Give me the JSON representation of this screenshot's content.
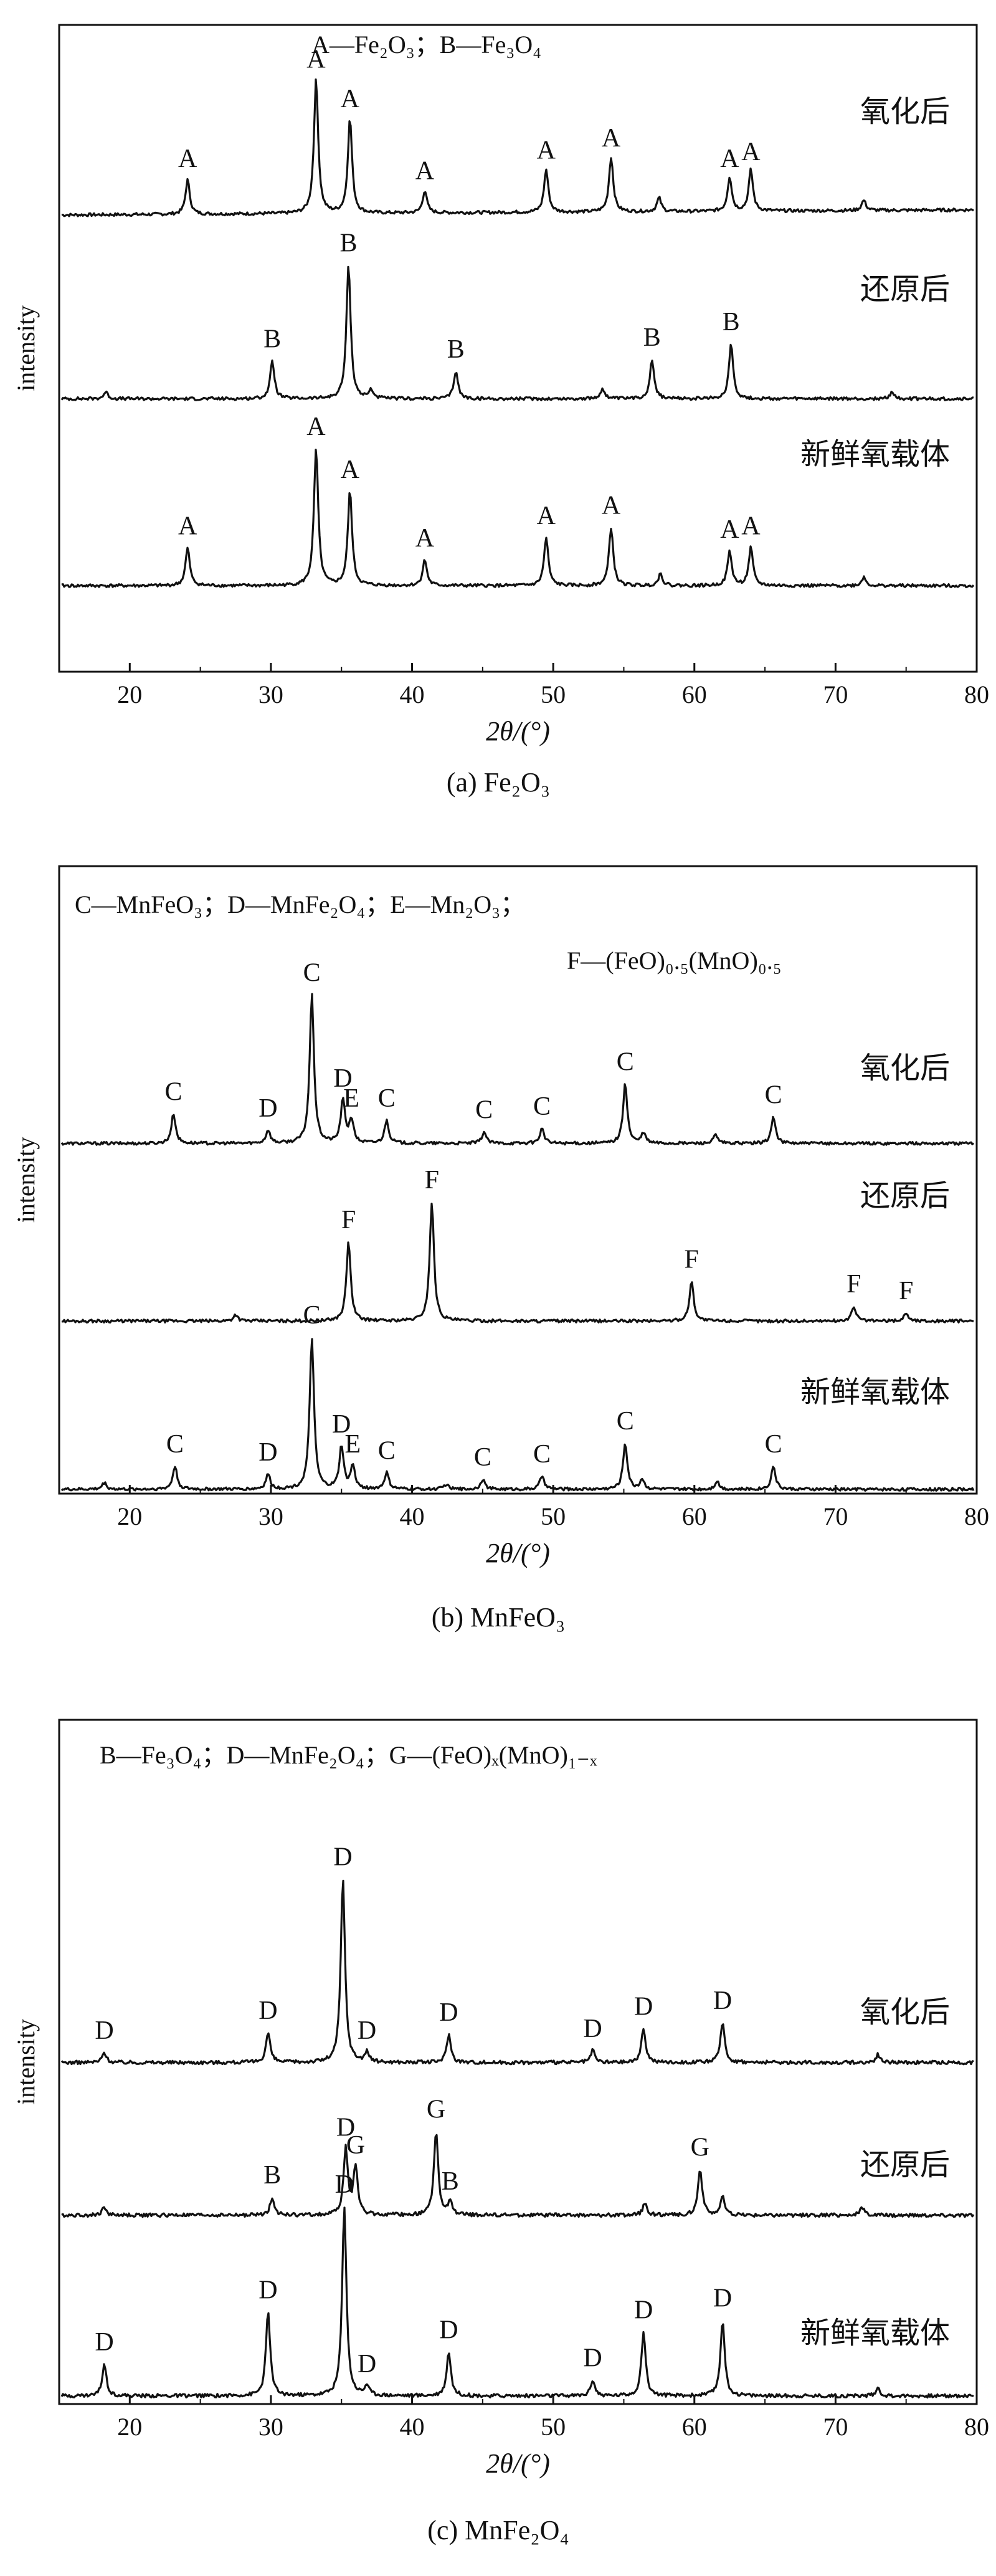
{
  "chart_data": [
    {
      "type": "line",
      "caption": "(a) Fe₂O₃",
      "legend": "A—Fe₂O₃；B—Fe₃O₄",
      "xlabel": "2θ/(°)",
      "ylabel": "intensity",
      "xlim": [
        15,
        80
      ],
      "xticks": [
        20,
        30,
        40,
        50,
        60,
        70,
        80
      ],
      "series": [
        {
          "name": "氧化后",
          "peaks": [
            {
              "x": 24.1,
              "h": 0.2,
              "label": "A"
            },
            {
              "x": 33.2,
              "h": 0.78,
              "label": "A"
            },
            {
              "x": 35.6,
              "h": 0.55,
              "label": "A"
            },
            {
              "x": 40.9,
              "h": 0.13,
              "label": "A"
            },
            {
              "x": 49.5,
              "h": 0.25,
              "label": "A"
            },
            {
              "x": 54.1,
              "h": 0.32,
              "label": "A"
            },
            {
              "x": 57.5,
              "h": 0.08,
              "label": ""
            },
            {
              "x": 62.5,
              "h": 0.2,
              "label": "A"
            },
            {
              "x": 64.0,
              "h": 0.24,
              "label": "A"
            },
            {
              "x": 72.0,
              "h": 0.06,
              "label": ""
            }
          ]
        },
        {
          "name": "还原后",
          "peaks": [
            {
              "x": 18.3,
              "h": 0.04,
              "label": ""
            },
            {
              "x": 30.1,
              "h": 0.22,
              "label": "B"
            },
            {
              "x": 35.5,
              "h": 0.78,
              "label": "B"
            },
            {
              "x": 37.1,
              "h": 0.05,
              "label": ""
            },
            {
              "x": 43.1,
              "h": 0.16,
              "label": "B"
            },
            {
              "x": 53.5,
              "h": 0.06,
              "label": ""
            },
            {
              "x": 57.0,
              "h": 0.23,
              "label": "B"
            },
            {
              "x": 62.6,
              "h": 0.32,
              "label": "B"
            },
            {
              "x": 74.0,
              "h": 0.04,
              "label": ""
            }
          ]
        },
        {
          "name": "新鲜氧载体",
          "peaks": [
            {
              "x": 24.1,
              "h": 0.22,
              "label": "A"
            },
            {
              "x": 33.2,
              "h": 0.8,
              "label": "A"
            },
            {
              "x": 35.6,
              "h": 0.55,
              "label": "A"
            },
            {
              "x": 40.9,
              "h": 0.15,
              "label": "A"
            },
            {
              "x": 49.5,
              "h": 0.28,
              "label": "A"
            },
            {
              "x": 54.1,
              "h": 0.34,
              "label": "A"
            },
            {
              "x": 57.6,
              "h": 0.07,
              "label": ""
            },
            {
              "x": 62.5,
              "h": 0.2,
              "label": "A"
            },
            {
              "x": 64.0,
              "h": 0.22,
              "label": "A"
            },
            {
              "x": 72.0,
              "h": 0.05,
              "label": ""
            }
          ]
        }
      ]
    },
    {
      "type": "line",
      "caption": "(b) MnFeO₃",
      "legend": "C—MnFeO₃；D—MnFe₂O₄；E—Mn₂O₃；",
      "legend2": "F—(FeO)₀.₅(MnO)₀.₅",
      "xlabel": "2θ/(°)",
      "ylabel": "intensity",
      "xlim": [
        15,
        80
      ],
      "xticks": [
        20,
        30,
        40,
        50,
        60,
        70,
        80
      ],
      "series": [
        {
          "name": "氧化后",
          "peaks": [
            {
              "x": 23.1,
              "h": 0.18,
              "label": "C"
            },
            {
              "x": 29.8,
              "h": 0.08,
              "label": "D"
            },
            {
              "x": 32.9,
              "h": 0.9,
              "label": "C"
            },
            {
              "x": 35.1,
              "h": 0.26,
              "label": "D"
            },
            {
              "x": 35.7,
              "h": 0.14,
              "label": "E"
            },
            {
              "x": 38.2,
              "h": 0.14,
              "label": "C"
            },
            {
              "x": 45.1,
              "h": 0.07,
              "label": "C"
            },
            {
              "x": 49.2,
              "h": 0.09,
              "label": "C"
            },
            {
              "x": 55.1,
              "h": 0.36,
              "label": "C"
            },
            {
              "x": 56.4,
              "h": 0.06,
              "label": ""
            },
            {
              "x": 61.5,
              "h": 0.05,
              "label": ""
            },
            {
              "x": 65.6,
              "h": 0.16,
              "label": "C"
            }
          ]
        },
        {
          "name": "还原后",
          "peaks": [
            {
              "x": 27.5,
              "h": 0.04,
              "label": ""
            },
            {
              "x": 35.5,
              "h": 0.48,
              "label": "F"
            },
            {
              "x": 41.4,
              "h": 0.72,
              "label": "F"
            },
            {
              "x": 59.8,
              "h": 0.24,
              "label": "F"
            },
            {
              "x": 71.3,
              "h": 0.09,
              "label": "F"
            },
            {
              "x": 75.0,
              "h": 0.05,
              "label": "F"
            }
          ]
        },
        {
          "name": "新鲜氧载体",
          "peaks": [
            {
              "x": 18.2,
              "h": 0.04,
              "label": ""
            },
            {
              "x": 23.2,
              "h": 0.14,
              "label": "C"
            },
            {
              "x": 29.8,
              "h": 0.09,
              "label": "D"
            },
            {
              "x": 32.9,
              "h": 0.92,
              "label": "C"
            },
            {
              "x": 35.0,
              "h": 0.26,
              "label": "D"
            },
            {
              "x": 35.8,
              "h": 0.14,
              "label": "E"
            },
            {
              "x": 38.2,
              "h": 0.1,
              "label": "C"
            },
            {
              "x": 42.4,
              "h": 0.03,
              "label": ""
            },
            {
              "x": 45.0,
              "h": 0.06,
              "label": "C"
            },
            {
              "x": 49.2,
              "h": 0.08,
              "label": "C"
            },
            {
              "x": 55.1,
              "h": 0.28,
              "label": "C"
            },
            {
              "x": 56.3,
              "h": 0.06,
              "label": ""
            },
            {
              "x": 61.6,
              "h": 0.05,
              "label": ""
            },
            {
              "x": 65.6,
              "h": 0.14,
              "label": "C"
            }
          ]
        }
      ]
    },
    {
      "type": "line",
      "caption": "(c) MnFe₂O₄",
      "legend": "B—Fe₃O₄；D—MnFe₂O₄；G—(FeO)ₓ(MnO)₁₋ₓ",
      "xlabel": "2θ/(°)",
      "ylabel": "intensity",
      "xlim": [
        15,
        80
      ],
      "xticks": [
        20,
        30,
        40,
        50,
        60,
        70,
        80
      ],
      "series": [
        {
          "name": "氧化后",
          "peaks": [
            {
              "x": 18.2,
              "h": 0.05,
              "label": "D"
            },
            {
              "x": 29.8,
              "h": 0.15,
              "label": "D"
            },
            {
              "x": 35.1,
              "h": 0.92,
              "label": "D"
            },
            {
              "x": 36.8,
              "h": 0.05,
              "label": "D"
            },
            {
              "x": 42.6,
              "h": 0.14,
              "label": "D"
            },
            {
              "x": 52.8,
              "h": 0.06,
              "label": "D"
            },
            {
              "x": 56.4,
              "h": 0.17,
              "label": "D"
            },
            {
              "x": 62.0,
              "h": 0.2,
              "label": "D"
            },
            {
              "x": 73.0,
              "h": 0.04,
              "label": ""
            }
          ]
        },
        {
          "name": "还原后",
          "peaks": [
            {
              "x": 18.2,
              "h": 0.04,
              "label": ""
            },
            {
              "x": 30.1,
              "h": 0.09,
              "label": "B"
            },
            {
              "x": 35.3,
              "h": 0.33,
              "label": "D"
            },
            {
              "x": 36.0,
              "h": 0.24,
              "label": "G"
            },
            {
              "x": 41.7,
              "h": 0.42,
              "label": "G"
            },
            {
              "x": 42.7,
              "h": 0.06,
              "label": "B"
            },
            {
              "x": 56.5,
              "h": 0.06,
              "label": ""
            },
            {
              "x": 60.4,
              "h": 0.23,
              "label": "G"
            },
            {
              "x": 62.0,
              "h": 0.09,
              "label": ""
            },
            {
              "x": 71.9,
              "h": 0.04,
              "label": ""
            }
          ]
        },
        {
          "name": "新鲜氧载体",
          "peaks": [
            {
              "x": 18.2,
              "h": 0.16,
              "label": "D"
            },
            {
              "x": 29.8,
              "h": 0.42,
              "label": "D"
            },
            {
              "x": 35.2,
              "h": 0.95,
              "label": "D"
            },
            {
              "x": 36.8,
              "h": 0.05,
              "label": "D"
            },
            {
              "x": 42.6,
              "h": 0.22,
              "label": "D"
            },
            {
              "x": 52.8,
              "h": 0.08,
              "label": "D"
            },
            {
              "x": 56.4,
              "h": 0.32,
              "label": "D"
            },
            {
              "x": 62.0,
              "h": 0.38,
              "label": "D"
            },
            {
              "x": 73.0,
              "h": 0.04,
              "label": ""
            }
          ]
        }
      ]
    }
  ]
}
